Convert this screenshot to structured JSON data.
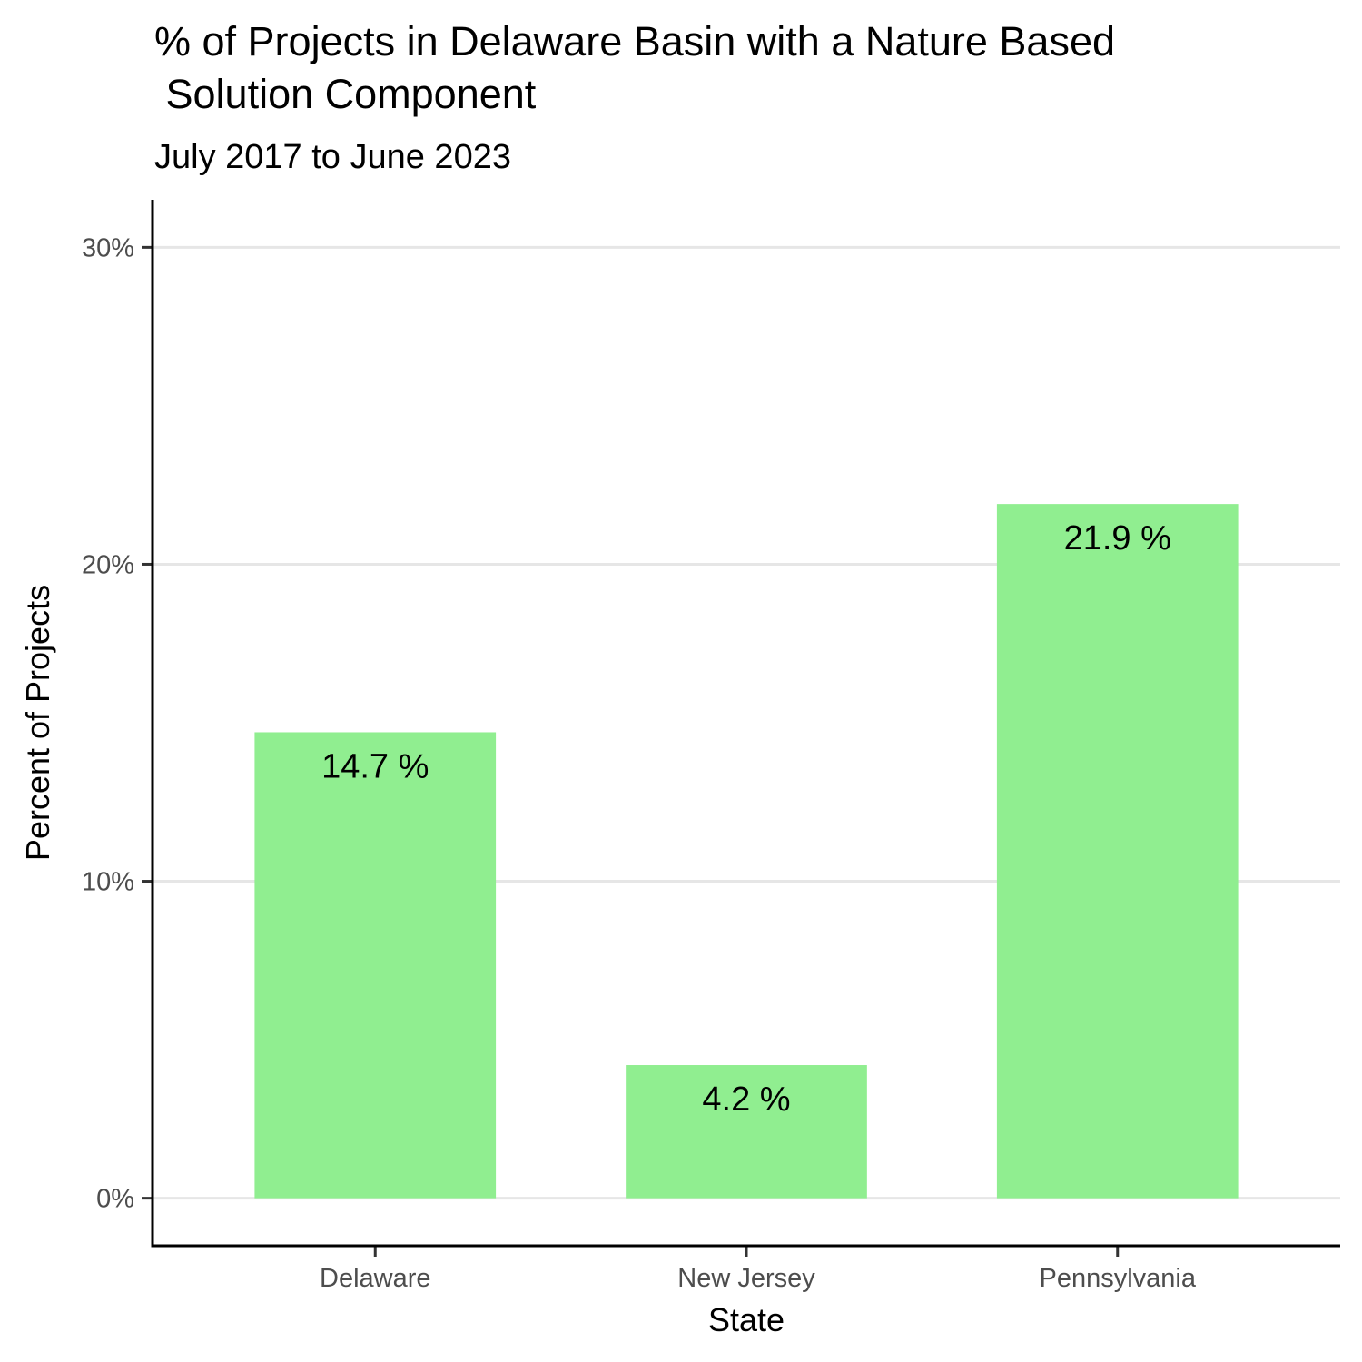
{
  "chart_data": {
    "type": "bar",
    "title_lines": [
      "% of Projects in Delaware Basin with a Nature Based",
      " Solution Component"
    ],
    "subtitle": "July 2017 to June 2023",
    "xlabel": "State",
    "ylabel": "Percent of Projects",
    "categories": [
      "Delaware",
      "New Jersey",
      "Pennsylvania"
    ],
    "values": [
      14.7,
      4.2,
      21.9
    ],
    "data_labels": [
      "14.7 %",
      "4.2 %",
      "21.9 %"
    ],
    "yticks": [
      0,
      10,
      20,
      30
    ],
    "ytick_labels": [
      "0%",
      "10%",
      "20%",
      "30%"
    ],
    "ylim": [
      -1.5,
      31.5
    ],
    "grid": "horizontal major",
    "legend": "none",
    "bar_color": "#90EE90"
  }
}
